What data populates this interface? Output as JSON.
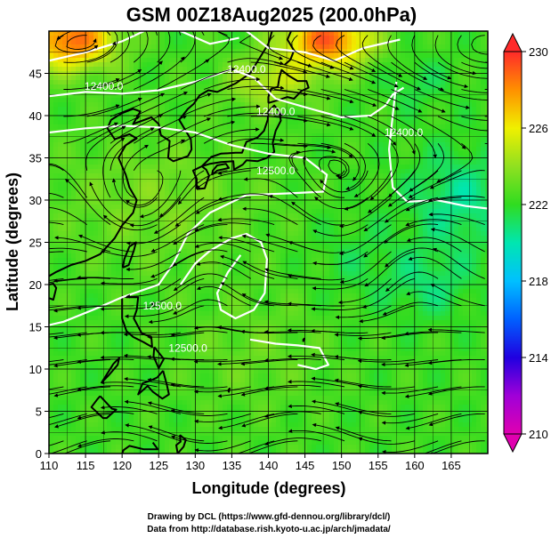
{
  "chart_data": {
    "type": "heatmap",
    "title": "GSM 00Z18Aug2025 (200.0hPa)",
    "xlabel": "Longitude (degrees)",
    "ylabel": "Latitude  (degrees)",
    "xlim": [
      110,
      170
    ],
    "ylim": [
      0,
      50
    ],
    "xticks": [
      110,
      115,
      120,
      125,
      130,
      135,
      140,
      145,
      150,
      155,
      160,
      165
    ],
    "yticks": [
      0,
      5,
      10,
      15,
      20,
      25,
      30,
      35,
      40,
      45
    ],
    "colorbar": {
      "min": 210,
      "max": 230,
      "ticks": [
        230,
        226,
        222,
        218,
        214,
        210
      ],
      "colors": [
        {
          "v": 210,
          "c": "#e000b0"
        },
        {
          "v": 212,
          "c": "#a000d8"
        },
        {
          "v": 214,
          "c": "#2000e0"
        },
        {
          "v": 216,
          "c": "#0060ff"
        },
        {
          "v": 218,
          "c": "#00c0ff"
        },
        {
          "v": 220,
          "c": "#00e6b0"
        },
        {
          "v": 222,
          "c": "#30dc20"
        },
        {
          "v": 224,
          "c": "#90e020"
        },
        {
          "v": 226,
          "c": "#f0f000"
        },
        {
          "v": 228,
          "c": "#ff9000"
        },
        {
          "v": 230,
          "c": "#ff2a2a"
        }
      ]
    },
    "contour_labels": [
      {
        "text": "12500.0",
        "lon": 141,
        "lat": 33.5
      },
      {
        "text": "12500.0",
        "lon": 125.5,
        "lat": 17.5
      },
      {
        "text": "12500.0",
        "lon": 129,
        "lat": 12.5
      },
      {
        "text": "12400.0",
        "lon": 141,
        "lat": 40.5
      },
      {
        "text": "12400.0",
        "lon": 117.5,
        "lat": 43.5
      },
      {
        "text": "12400.0",
        "lon": 137,
        "lat": 45.5
      },
      {
        "text": "12400.0",
        "lon": 158.5,
        "lat": 38
      }
    ],
    "credits": [
      "Drawing by DCL (https://www.gfd-dennou.org/library/dcl/)",
      "Data from http://database.rish.kyoto-u.ac.jp/arch/jmadata/"
    ]
  }
}
